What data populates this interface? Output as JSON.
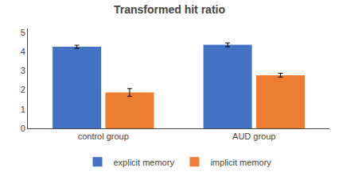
{
  "chart_data": {
    "type": "bar",
    "title": "Transformed hit ratio",
    "categories": [
      "control group",
      "AUD group"
    ],
    "series": [
      {
        "name": "explicit memory",
        "color": "#4472C4",
        "values": [
          4.25,
          4.35
        ],
        "errors": [
          0.08,
          0.1
        ]
      },
      {
        "name": "implicit memory",
        "color": "#ED7D31",
        "values": [
          1.87,
          2.77
        ],
        "errors": [
          0.2,
          0.1
        ]
      }
    ],
    "ylim": [
      0,
      5.2
    ],
    "yticks": [
      0,
      1,
      2,
      3,
      4,
      5
    ],
    "grid": false,
    "legend": "bottom"
  }
}
